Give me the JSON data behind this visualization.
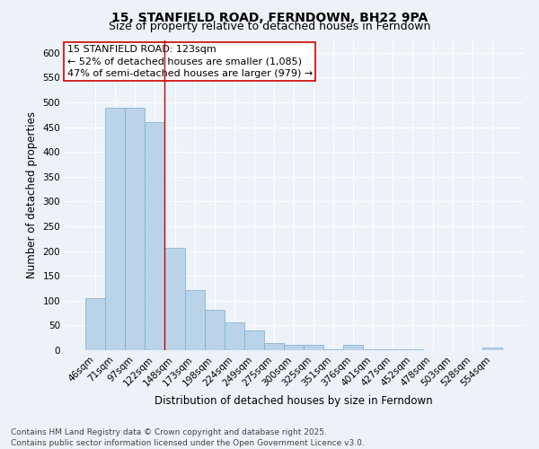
{
  "title": "15, STANFIELD ROAD, FERNDOWN, BH22 9PA",
  "subtitle": "Size of property relative to detached houses in Ferndown",
  "xlabel": "Distribution of detached houses by size in Ferndown",
  "ylabel": "Number of detached properties",
  "categories": [
    "46sqm",
    "71sqm",
    "97sqm",
    "122sqm",
    "148sqm",
    "173sqm",
    "198sqm",
    "224sqm",
    "249sqm",
    "275sqm",
    "300sqm",
    "325sqm",
    "351sqm",
    "376sqm",
    "401sqm",
    "427sqm",
    "452sqm",
    "478sqm",
    "503sqm",
    "528sqm",
    "554sqm"
  ],
  "values": [
    105,
    490,
    490,
    460,
    207,
    122,
    82,
    57,
    40,
    15,
    10,
    10,
    2,
    10,
    1,
    1,
    1,
    0,
    0,
    0,
    5
  ],
  "bar_color": "#bad3e8",
  "bar_edgecolor": "#7aaed4",
  "vline_x_index": 3,
  "vline_color": "#cc0000",
  "annotation_text": "15 STANFIELD ROAD: 123sqm\n← 52% of detached houses are smaller (1,085)\n47% of semi-detached houses are larger (979) →",
  "ylim": [
    0,
    625
  ],
  "yticks": [
    0,
    50,
    100,
    150,
    200,
    250,
    300,
    350,
    400,
    450,
    500,
    550,
    600
  ],
  "bg_color": "#edf2f9",
  "grid_color": "#ffffff",
  "footer": "Contains HM Land Registry data © Crown copyright and database right 2025.\nContains public sector information licensed under the Open Government Licence v3.0.",
  "title_fontsize": 10,
  "subtitle_fontsize": 9,
  "axis_label_fontsize": 8.5,
  "tick_fontsize": 7.5,
  "annotation_fontsize": 8,
  "footer_fontsize": 6.5
}
